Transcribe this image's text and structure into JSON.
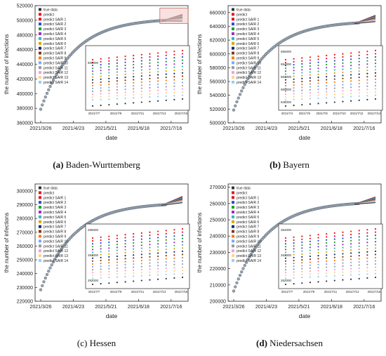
{
  "colors": {
    "true_data": "#333333",
    "series": [
      "#e8141c",
      "#1f4fd8",
      "#1fa02a",
      "#9c2fc0",
      "#2fb8c9",
      "#d4a800",
      "#1b2a6b",
      "#7a3a1a",
      "#ff7a00",
      "#7aa7ff",
      "#9a9a9a",
      "#ff9ad5",
      "#ffd38a",
      "#8fd0ff"
    ],
    "highlight_fill": "#f3c9c4",
    "highlight_stroke": "#c96c62"
  },
  "legend": [
    "true data",
    "predict",
    "predict SAIR 1",
    "predict SAIR 2",
    "predict SAIR 3",
    "predict SAIR 4",
    "predict SAIR 5",
    "predict SAIR 6",
    "predict SAIR 7",
    "predict SAIR 8",
    "predict SAIR 9",
    "predict SAIR 10",
    "predict SAIR 11",
    "predict SAIR 12",
    "predict SAIR 13",
    "predict SAIR 14"
  ],
  "chart_data": [
    {
      "type": "scatter",
      "panel_letter": "(a)",
      "region": "Baden-Wurttemberg",
      "ylabel": "the number of infections",
      "xlabel": "date",
      "x_ticks": [
        "2021/3/26",
        "2021/4/23",
        "2021/5/21",
        "2021/6/18",
        "2021/7/16"
      ],
      "y_ticks": [
        360000,
        380000,
        400000,
        420000,
        440000,
        460000,
        480000,
        500000,
        520000
      ],
      "ylim": [
        360000,
        520000
      ],
      "start": 378000,
      "plateau": 500000,
      "end_spread": [
        500000,
        508000
      ],
      "inset_ytick": "500000",
      "inset_xticks": [
        "2021/7/7",
        "2021/7/9",
        "2021/7/11",
        "2021/7/13",
        "2021/7/15"
      ],
      "highlight_box": true
    },
    {
      "type": "scatter",
      "panel_letter": "(b)",
      "region": "Bayern",
      "ylabel": "the number of infections",
      "xlabel": "date",
      "x_ticks": [
        "2021/3/26",
        "2021/4/23",
        "2021/5/21",
        "2021/6/18",
        "2021/7/16"
      ],
      "y_ticks": [
        500000,
        520000,
        540000,
        560000,
        580000,
        600000,
        620000,
        640000,
        660000
      ],
      "ylim": [
        500000,
        670000
      ],
      "start": 518000,
      "plateau": 645000,
      "end_spread": [
        648000,
        656000
      ],
      "inset_ytick": "",
      "inset_yticks": [
        "648000",
        "650000",
        "652000",
        "654000",
        "656000"
      ],
      "inset_xticks": [
        "2021/7/4",
        "2021/7/6",
        "2021/7/8",
        "2021/7/10",
        "2021/7/12",
        "2021/7/14"
      ],
      "highlight_box": false
    },
    {
      "type": "scatter",
      "panel_letter": "(c)",
      "region": "Hessen",
      "ylabel": "the number of infections",
      "xlabel": "date",
      "x_ticks": [
        "2021/3/26",
        "2021/4/23",
        "2021/5/21",
        "2021/6/18",
        "2021/7/16"
      ],
      "y_ticks": [
        220000,
        230000,
        240000,
        250000,
        260000,
        270000,
        280000,
        290000,
        300000
      ],
      "ylim": [
        220000,
        305000
      ],
      "start": 228000,
      "plateau": 290000,
      "end_spread": [
        292000,
        296000
      ],
      "inset_ytick": "",
      "inset_yticks": [
        "292000",
        "294000",
        "296000"
      ],
      "inset_xticks": [
        "2021/7/7",
        "2021/7/9",
        "2021/7/11",
        "2021/7/13",
        "2021/7/15"
      ],
      "highlight_box": false
    },
    {
      "type": "scatter",
      "panel_letter": "(d)",
      "region": "Niedersachsen",
      "ylabel": "the number of infections",
      "xlabel": "date",
      "x_ticks": [
        "2021/3/26",
        "2021/4/23",
        "2021/5/21",
        "2021/6/18",
        "2021/7/16"
      ],
      "y_ticks": [
        200000,
        210000,
        220000,
        230000,
        240000,
        250000,
        260000,
        270000
      ],
      "ylim": [
        200000,
        272000
      ],
      "start": 206000,
      "plateau": 260000,
      "end_spread": [
        261000,
        264000
      ],
      "inset_ytick": "",
      "inset_yticks": [
        "262000",
        "263000",
        "264000"
      ],
      "inset_xticks": [
        "2021/7/7",
        "2021/7/9",
        "2021/7/11",
        "2021/7/13",
        "2021/7/15"
      ],
      "highlight_box": false
    }
  ]
}
